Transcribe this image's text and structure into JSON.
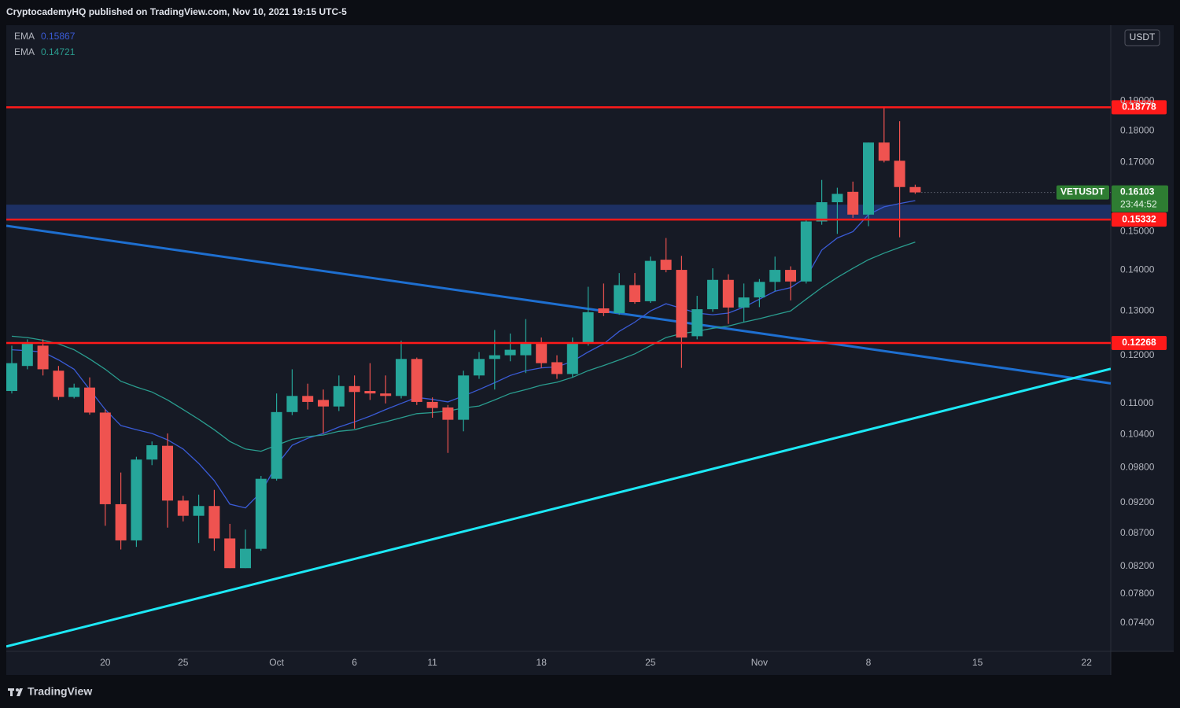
{
  "header": {
    "text": "CryptocademyHQ published on TradingView.com, Nov 10, 2021 19:15 UTC-5"
  },
  "footer": {
    "brand": "TradingView"
  },
  "chart_data": {
    "type": "candlestick",
    "symbol": "VETUSDT",
    "currency": "USDT",
    "countdown": "23:44:52",
    "x": [
      "Sep 14",
      "Sep 15",
      "Sep 16",
      "Sep 17",
      "Sep 18",
      "Sep 19",
      "Sep 20",
      "Sep 21",
      "Sep 22",
      "Sep 23",
      "Sep 24",
      "Sep 25",
      "Sep 26",
      "Sep 27",
      "Sep 28",
      "Sep 29",
      "Sep 30",
      "Oct 1",
      "Oct 2",
      "Oct 3",
      "Oct 4",
      "Oct 5",
      "Oct 6",
      "Oct 7",
      "Oct 8",
      "Oct 9",
      "Oct 10",
      "Oct 11",
      "Oct 12",
      "Oct 13",
      "Oct 14",
      "Oct 15",
      "Oct 16",
      "Oct 17",
      "Oct 18",
      "Oct 19",
      "Oct 20",
      "Oct 21",
      "Oct 22",
      "Oct 23",
      "Oct 24",
      "Oct 25",
      "Oct 26",
      "Oct 27",
      "Oct 28",
      "Oct 29",
      "Oct 30",
      "Oct 31",
      "Nov 1",
      "Nov 2",
      "Nov 3",
      "Nov 4",
      "Nov 5",
      "Nov 6",
      "Nov 7",
      "Nov 8",
      "Nov 9",
      "Nov 10",
      "Nov 11"
    ],
    "open": [
      0.1125,
      0.1177,
      0.1221,
      0.1167,
      0.1113,
      0.1132,
      0.1082,
      0.0917,
      0.0859,
      0.0994,
      0.1019,
      0.0923,
      0.0898,
      0.0914,
      0.0862,
      0.0817,
      0.0846,
      0.096,
      0.1083,
      0.1115,
      0.1107,
      0.1094,
      0.1135,
      0.1125,
      0.112,
      0.1115,
      0.1192,
      0.1103,
      0.1092,
      0.1068,
      0.1157,
      0.1192,
      0.12,
      0.12,
      0.1226,
      0.1185,
      0.116,
      0.1226,
      0.1306,
      0.1295,
      0.1362,
      0.1323,
      0.1426,
      0.14,
      0.1242,
      0.1304,
      0.1375,
      0.1308,
      0.1332,
      0.137,
      0.14,
      0.1371,
      0.1528,
      0.1582,
      0.1612,
      0.1547,
      0.1762,
      0.1705,
      0.1626
    ],
    "high": [
      0.1221,
      0.1235,
      0.1235,
      0.1177,
      0.114,
      0.1153,
      0.1088,
      0.0971,
      0.0999,
      0.1027,
      0.1042,
      0.0931,
      0.0933,
      0.0941,
      0.0885,
      0.0876,
      0.0965,
      0.112,
      0.117,
      0.114,
      0.1128,
      0.1157,
      0.1157,
      0.1183,
      0.1157,
      0.1232,
      0.1195,
      0.1112,
      0.1097,
      0.1167,
      0.1207,
      0.1256,
      0.1248,
      0.1281,
      0.1239,
      0.12,
      0.1239,
      0.1358,
      0.1366,
      0.1392,
      0.1392,
      0.1434,
      0.1483,
      0.1436,
      0.1336,
      0.1404,
      0.1389,
      0.1366,
      0.1377,
      0.1434,
      0.1409,
      0.1532,
      0.1647,
      0.1624,
      0.1642,
      0.1762,
      0.1878,
      0.1831,
      0.1633
    ],
    "low": [
      0.112,
      0.117,
      0.1157,
      0.1107,
      0.111,
      0.1078,
      0.0882,
      0.0845,
      0.0849,
      0.0984,
      0.0879,
      0.0889,
      0.0855,
      0.0843,
      0.0817,
      0.0817,
      0.0843,
      0.0957,
      0.1077,
      0.1088,
      0.1042,
      0.1085,
      0.1051,
      0.1107,
      0.11,
      0.111,
      0.1097,
      0.1072,
      0.1006,
      0.1046,
      0.115,
      0.1128,
      0.1187,
      0.1162,
      0.1173,
      0.115,
      0.1153,
      0.1221,
      0.1288,
      0.1291,
      0.1317,
      0.1319,
      0.1394,
      0.1173,
      0.1235,
      0.1298,
      0.127,
      0.1274,
      0.1309,
      0.1347,
      0.1325,
      0.1366,
      0.1519,
      0.1494,
      0.1538,
      0.1515,
      0.17,
      0.1485,
      0.1606
    ],
    "close": [
      0.1183,
      0.1225,
      0.117,
      0.1113,
      0.1132,
      0.1082,
      0.0917,
      0.0859,
      0.0994,
      0.102,
      0.0923,
      0.0898,
      0.0914,
      0.0862,
      0.0817,
      0.0846,
      0.096,
      0.1083,
      0.1115,
      0.1103,
      0.1094,
      0.1135,
      0.1123,
      0.112,
      0.1115,
      0.1192,
      0.1103,
      0.1091,
      0.1068,
      0.1157,
      0.1192,
      0.12,
      0.1212,
      0.1226,
      0.1183,
      0.116,
      0.1226,
      0.1297,
      0.1295,
      0.1362,
      0.1321,
      0.1423,
      0.14,
      0.1239,
      0.1304,
      0.1375,
      0.1308,
      0.1332,
      0.137,
      0.14,
      0.1371,
      0.1528,
      0.1582,
      0.1606,
      0.1547,
      0.1762,
      0.1705,
      0.1626,
      0.16103
    ],
    "up_color": "#26a69a",
    "down_color": "#ef5350",
    "price_color": "#2e7d32",
    "series": [
      {
        "name": "EMA",
        "color": "#3a5bd6",
        "values": [
          0.1212,
          0.121,
          0.1207,
          0.119,
          0.117,
          0.1128,
          0.1088,
          0.1057,
          0.1049,
          0.1042,
          0.103,
          0.1013,
          0.0987,
          0.0957,
          0.0917,
          0.0911,
          0.0937,
          0.0984,
          0.102,
          0.1033,
          0.1042,
          0.1054,
          0.1064,
          0.1075,
          0.1088,
          0.11,
          0.1112,
          0.1108,
          0.1103,
          0.1115,
          0.1128,
          0.1142,
          0.1157,
          0.1167,
          0.1173,
          0.1175,
          0.1187,
          0.1207,
          0.1225,
          0.1253,
          0.1274,
          0.13,
          0.1317,
          0.1306,
          0.1295,
          0.1291,
          0.1295,
          0.1309,
          0.1328,
          0.1347,
          0.1356,
          0.1381,
          0.1451,
          0.1483,
          0.15,
          0.1547,
          0.1569,
          0.1578,
          0.15867
        ]
      },
      {
        "name": "EMA",
        "color": "#2a9d8f",
        "values": [
          0.1242,
          0.1239,
          0.1233,
          0.1225,
          0.1212,
          0.1192,
          0.117,
          0.1145,
          0.1133,
          0.1123,
          0.1107,
          0.1088,
          0.1069,
          0.1049,
          0.1027,
          0.1013,
          0.1009,
          0.102,
          0.1031,
          0.1036,
          0.1039,
          0.1046,
          0.1049,
          0.1057,
          0.1064,
          0.1072,
          0.108,
          0.1082,
          0.1085,
          0.1091,
          0.1095,
          0.1107,
          0.112,
          0.1128,
          0.1137,
          0.1143,
          0.1153,
          0.1167,
          0.1178,
          0.119,
          0.1203,
          0.1221,
          0.1239,
          0.1248,
          0.1253,
          0.126,
          0.1265,
          0.1274,
          0.1282,
          0.1291,
          0.13,
          0.1328,
          0.1356,
          0.1381,
          0.1404,
          0.1426,
          0.1443,
          0.1458,
          0.14721
        ]
      }
    ],
    "hlines": [
      {
        "value": 0.18778,
        "color": "#ff1a1a"
      },
      {
        "value": 0.15332,
        "color": "#ff1a1a"
      },
      {
        "value": 0.12268,
        "color": "#ff1a1a"
      }
    ],
    "zone": {
      "from": 0.15332,
      "to": 0.1575,
      "color": "#1f3570"
    },
    "trendlines": [
      {
        "x": [
          "Sep 14",
          "Nov 20"
        ],
        "y": [
          0.1514,
          0.1157
        ],
        "color": "#1e6fd0"
      },
      {
        "x": [
          "Sep 14",
          "Nov 20"
        ],
        "y": [
          0.0711,
          0.1142
        ],
        "color": "#1de9f6"
      }
    ],
    "log_scale": true,
    "ylim": [
      0.0703,
      0.2178
    ],
    "yticks": [
      {
        "value": 0.074,
        "label": "0.07400"
      },
      {
        "value": 0.078,
        "label": "0.07800"
      },
      {
        "value": 0.082,
        "label": "0.08200"
      },
      {
        "value": 0.087,
        "label": "0.08700"
      },
      {
        "value": 0.092,
        "label": "0.09200"
      },
      {
        "value": 0.098,
        "label": "0.09800"
      },
      {
        "value": 0.104,
        "label": "0.10400"
      },
      {
        "value": 0.11,
        "label": "0.11000"
      },
      {
        "value": 0.12,
        "label": "0.12000"
      },
      {
        "value": 0.13,
        "label": "0.13000"
      },
      {
        "value": 0.14,
        "label": "0.14000"
      },
      {
        "value": 0.15,
        "label": "0.15000"
      },
      {
        "value": 0.17,
        "label": "0.17000"
      },
      {
        "value": 0.18,
        "label": "0.18000"
      },
      {
        "value": 0.19,
        "label": "0.19000"
      }
    ],
    "xlim": [
      "Sep 14",
      "Nov 23"
    ],
    "xticks": [
      {
        "value": "Sep 20",
        "label": "20"
      },
      {
        "value": "Sep 25",
        "label": "25"
      },
      {
        "value": "Oct 1",
        "label": "Oct"
      },
      {
        "value": "Oct 6",
        "label": "6"
      },
      {
        "value": "Oct 11",
        "label": "11"
      },
      {
        "value": "Oct 18",
        "label": "18"
      },
      {
        "value": "Oct 25",
        "label": "25"
      },
      {
        "value": "Nov 1",
        "label": "Nov"
      },
      {
        "value": "Nov 8",
        "label": "8"
      },
      {
        "value": "Nov 15",
        "label": "15"
      },
      {
        "value": "Nov 22",
        "label": "22"
      }
    ]
  }
}
